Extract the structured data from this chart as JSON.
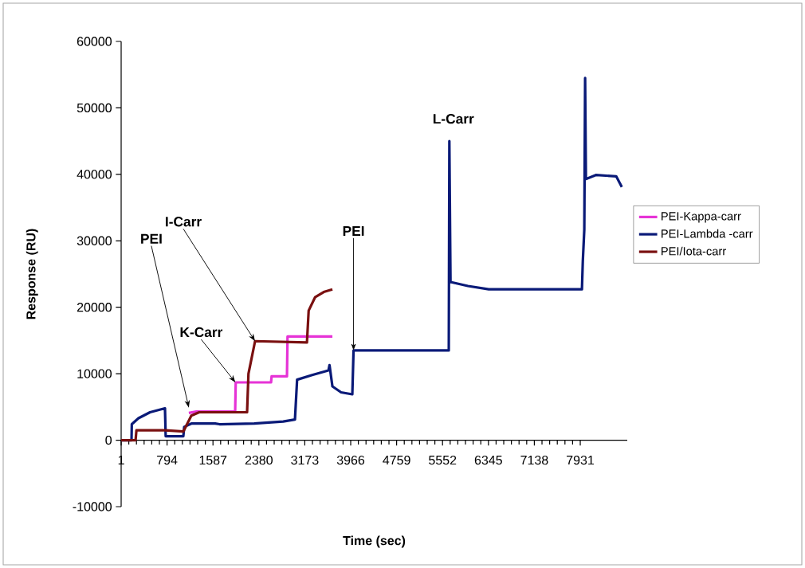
{
  "chart_data": {
    "type": "line",
    "xlabel": "Time (sec)",
    "ylabel": "Response (RU)",
    "xlim": [
      1,
      8743
    ],
    "xticks": [
      1,
      794,
      1587,
      2380,
      3173,
      3966,
      4759,
      5552,
      6345,
      7138,
      7931
    ],
    "ylim": [
      -10000,
      60000
    ],
    "yticks": [
      -10000,
      0,
      10000,
      20000,
      30000,
      40000,
      50000,
      60000
    ],
    "legend": "right",
    "series": [
      {
        "name": "PEI-Kappa-carr",
        "color": "#e633d6",
        "x": [
          1170,
          1300,
          1970,
          1980,
          2590,
          2600,
          2865,
          2875,
          3650
        ],
        "values": [
          4100,
          4300,
          4300,
          8700,
          8700,
          9600,
          9600,
          15600,
          15600
        ]
      },
      {
        "name": "PEI-Lambda -carr",
        "color": "#0a1a78",
        "x": [
          1,
          180,
          185,
          300,
          500,
          758,
          770,
          1075,
          1090,
          1213,
          1626,
          1700,
          2300,
          2800,
          3003,
          3040,
          3300,
          3581,
          3600,
          3650,
          3800,
          3994,
          4015,
          5660,
          5670,
          5690,
          5991,
          6349,
          7960,
          7975,
          8001,
          8015,
          8029,
          8200,
          8552,
          8649
        ],
        "values": [
          0,
          0,
          2400,
          3300,
          4200,
          4800,
          600,
          600,
          2000,
          2500,
          2500,
          2400,
          2500,
          2800,
          3100,
          9100,
          9800,
          10500,
          11300,
          8100,
          7200,
          6900,
          13500,
          13500,
          45000,
          23800,
          23200,
          22700,
          22700,
          26900,
          31700,
          54500,
          39300,
          39900,
          39700,
          38100
        ]
      },
      {
        "name": "PEI/Iota-carr",
        "color": "#7a1010",
        "x": [
          1,
          250,
          265,
          758,
          1075,
          1213,
          1350,
          2176,
          2200,
          2314,
          3210,
          3240,
          3350,
          3500,
          3650
        ],
        "values": [
          0,
          0,
          1500,
          1500,
          1300,
          3700,
          4200,
          4200,
          10000,
          14900,
          14700,
          19500,
          21500,
          22300,
          22700
        ]
      }
    ],
    "annotations": [
      {
        "text": "PEI",
        "x": 1170,
        "y": 4900
      },
      {
        "text": "K-Carr",
        "x": 1975,
        "y": 8700
      },
      {
        "text": "I-Carr",
        "x": 2314,
        "y": 14900
      },
      {
        "text": "PEI",
        "x": 4015,
        "y": 13500
      },
      {
        "text": "L-Carr",
        "x": 5670,
        "y": 45000
      }
    ]
  }
}
